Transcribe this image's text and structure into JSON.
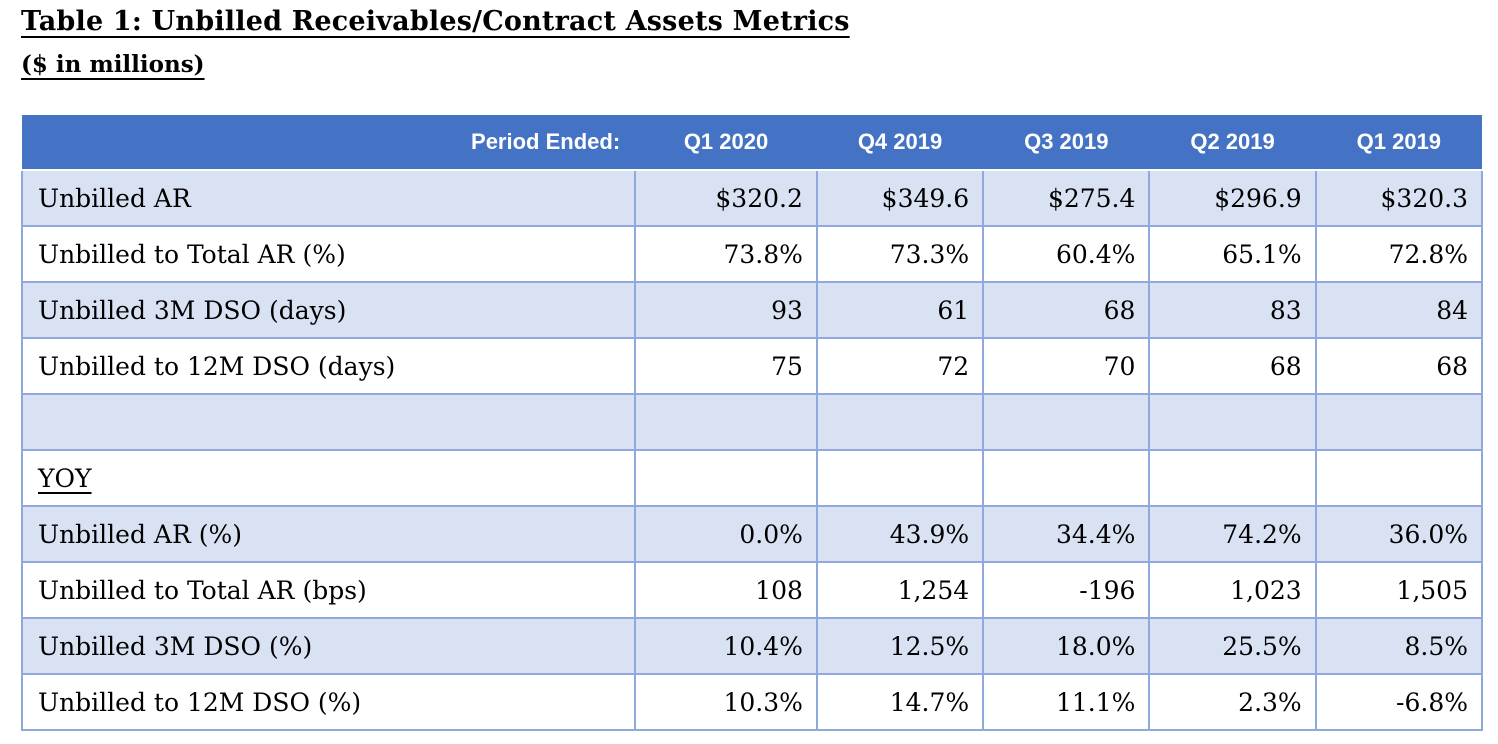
{
  "document": {
    "title": "Table 1: Unbilled Receivables/Contract Assets Metrics",
    "subtitle": "($ in millions)"
  },
  "colors": {
    "header_bg": "#4472C4",
    "header_text": "#FFFFFF",
    "band_fill": "#D9E2F3",
    "border": "#8EA9DB",
    "text": "#000000"
  },
  "table": {
    "header": {
      "label": "Period Ended:",
      "columns": [
        "Q1 2020",
        "Q4 2019",
        "Q3 2019",
        "Q2 2019",
        "Q1 2019"
      ]
    },
    "rows": [
      {
        "label": "Unbilled AR",
        "values": [
          "$320.2",
          "$349.6",
          "$275.4",
          "$296.9",
          "$320.3"
        ]
      },
      {
        "label": "Unbilled to Total AR (%)",
        "values": [
          "73.8%",
          "73.3%",
          "60.4%",
          "65.1%",
          "72.8%"
        ]
      },
      {
        "label": "Unbilled 3M DSO (days)",
        "values": [
          "93",
          "61",
          "68",
          "83",
          "84"
        ]
      },
      {
        "label": "Unbilled to 12M DSO (days)",
        "values": [
          "75",
          "72",
          "70",
          "68",
          "68"
        ]
      },
      {
        "label": "",
        "values": [
          "",
          "",
          "",
          "",
          ""
        ]
      },
      {
        "label": "YOY",
        "values": [
          "",
          "",
          "",
          "",
          ""
        ]
      },
      {
        "label": "Unbilled AR (%)",
        "values": [
          "0.0%",
          "43.9%",
          "34.4%",
          "74.2%",
          "36.0%"
        ]
      },
      {
        "label": "Unbilled to Total AR (bps)",
        "values": [
          "108",
          "1,254",
          "-196",
          "1,023",
          "1,505"
        ]
      },
      {
        "label": "Unbilled 3M DSO (%)",
        "values": [
          "10.4%",
          "12.5%",
          "18.0%",
          "25.5%",
          "8.5%"
        ]
      },
      {
        "label": "Unbilled to 12M DSO (%)",
        "values": [
          "10.3%",
          "14.7%",
          "11.1%",
          "2.3%",
          "-6.8%"
        ]
      }
    ]
  }
}
